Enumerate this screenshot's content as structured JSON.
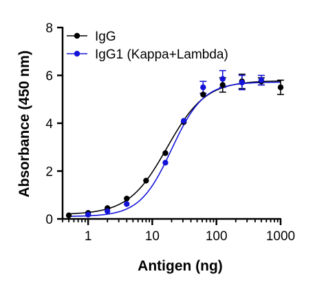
{
  "chart_data": {
    "type": "scatter",
    "title": "",
    "xlabel": "Antigen (ng)",
    "ylabel": "Absorbance (450 nm)",
    "x_scale": "log",
    "xlim": [
      0.4,
      1000
    ],
    "ylim": [
      0,
      8
    ],
    "x_ticks": [
      1,
      10,
      100,
      1000
    ],
    "x_tick_labels": [
      "1",
      "10",
      "100",
      "1000"
    ],
    "y_ticks": [
      0,
      2,
      4,
      6,
      8
    ],
    "y_tick_labels": [
      "0",
      "2",
      "4",
      "6",
      "8"
    ],
    "grid": false,
    "legend_position": "top-left",
    "series": [
      {
        "name": "IgG",
        "color": "#000000",
        "x": [
          0.5,
          1,
          2,
          4,
          8,
          16,
          31,
          62,
          125,
          250,
          500,
          1000
        ],
        "y": [
          0.15,
          0.25,
          0.45,
          0.85,
          1.6,
          2.75,
          4.05,
          5.2,
          5.6,
          5.75,
          5.75,
          5.5
        ],
        "error": [
          0,
          0,
          0,
          0,
          0,
          0,
          0,
          0,
          0.3,
          0.3,
          0.15,
          0.3
        ],
        "fit": {
          "bottom": 0.18,
          "top": 5.78,
          "ec50": 17,
          "hill": 1.45
        }
      },
      {
        "name": "IgG1 (Kappa+Lambda)",
        "color": "#1414d9",
        "x": [
          1,
          2,
          4,
          16,
          31,
          62,
          125,
          250,
          500
        ],
        "y": [
          0.18,
          0.32,
          0.62,
          2.35,
          4.1,
          5.5,
          5.85,
          5.7,
          5.8
        ],
        "error": [
          0,
          0,
          0,
          0,
          0,
          0.25,
          0.35,
          0.3,
          0.2
        ],
        "fit": {
          "bottom": 0.1,
          "top": 5.72,
          "ec50": 20,
          "hill": 1.75
        }
      }
    ]
  }
}
